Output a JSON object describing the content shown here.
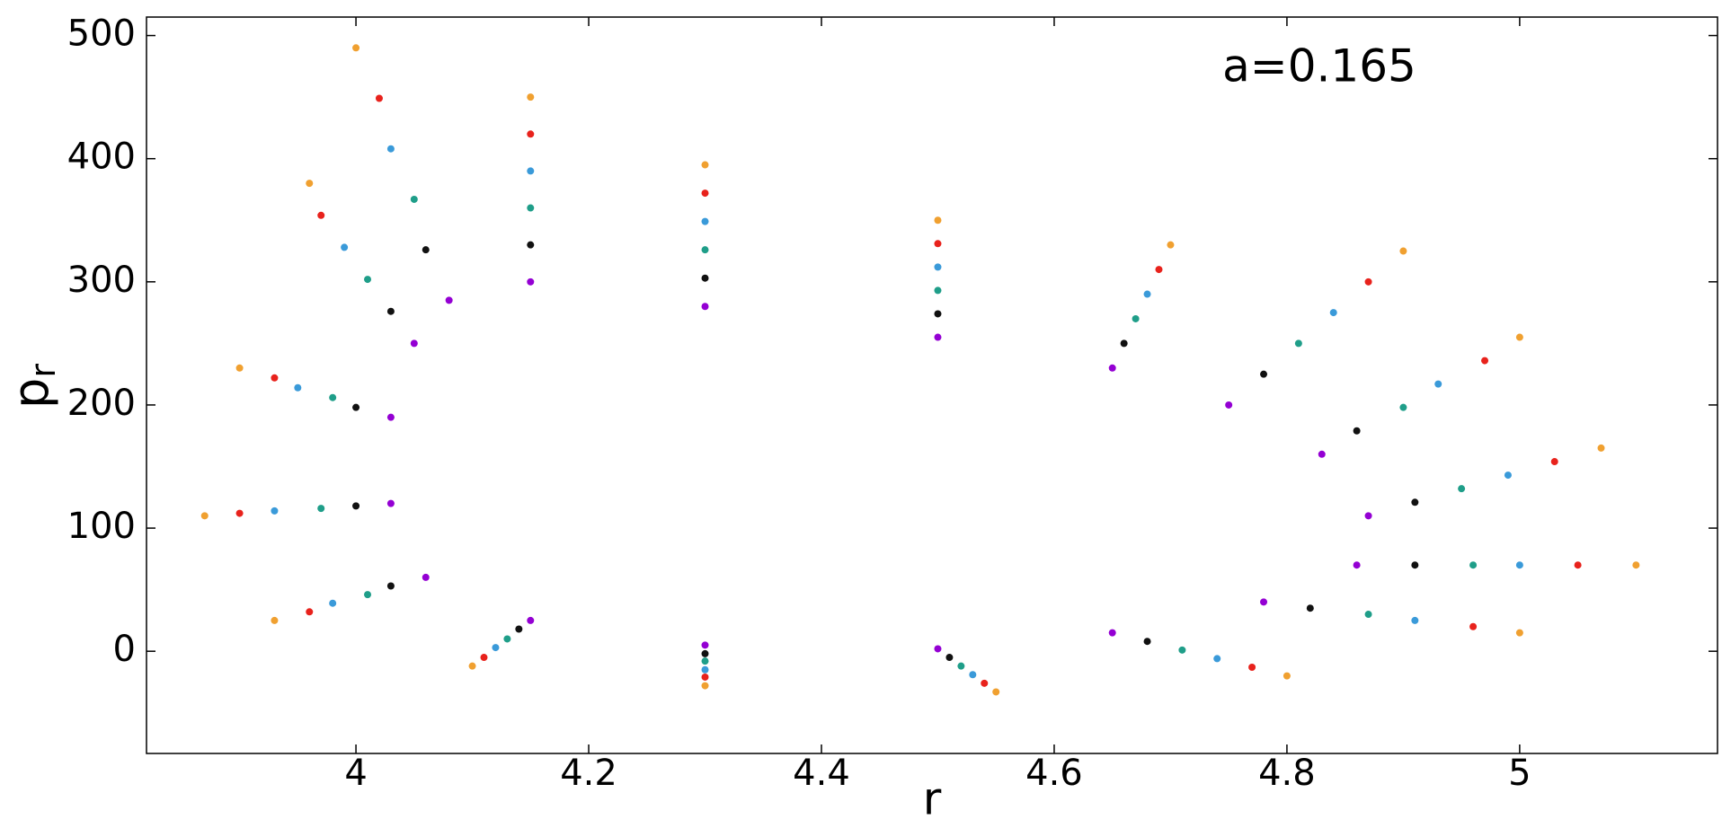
{
  "chart_data": {
    "type": "scatter",
    "annotation": "a=0.165",
    "x_label": "r",
    "y_label": "p",
    "y_label_subscript": "r",
    "xlim": [
      3.82,
      5.17
    ],
    "ylim": [
      -83,
      515
    ],
    "xticks": [
      4,
      4.2,
      4.4,
      4.6,
      4.8,
      5
    ],
    "yticks": [
      0,
      100,
      200,
      300,
      400,
      500
    ],
    "grid": false,
    "series": [
      {
        "color": "#9400d3",
        "x": [
          4.08,
          4.15,
          4.3,
          4.5,
          4.65,
          4.75,
          4.83,
          4.87,
          4.86,
          4.78,
          4.65,
          4.5,
          4.3,
          4.15,
          4.06,
          4.03,
          4.03,
          4.05
        ],
        "values": [
          285,
          300,
          280,
          255,
          230,
          200,
          160,
          110,
          70,
          40,
          15,
          2,
          5,
          25,
          60,
          120,
          190,
          250
        ]
      },
      {
        "color": "#111111",
        "x": [
          4.06,
          4.15,
          4.3,
          4.5,
          4.66,
          4.78,
          4.86,
          4.91,
          4.91,
          4.82,
          4.68,
          4.51,
          4.3,
          4.14,
          4.03,
          4.0,
          4.0,
          4.03
        ],
        "values": [
          326,
          330,
          303,
          274,
          250,
          225,
          179,
          121,
          70,
          35,
          8,
          -5,
          -2,
          18,
          53,
          118,
          198,
          276
        ]
      },
      {
        "color": "#1f9e89",
        "x": [
          4.05,
          4.15,
          4.3,
          4.5,
          4.67,
          4.81,
          4.9,
          4.95,
          4.96,
          4.87,
          4.71,
          4.52,
          4.3,
          4.13,
          4.01,
          3.97,
          3.98,
          4.01
        ],
        "values": [
          367,
          360,
          326,
          293,
          270,
          250,
          198,
          132,
          70,
          30,
          1,
          -12,
          -8,
          10,
          46,
          116,
          206,
          302
        ]
      },
      {
        "color": "#3a9ad9",
        "x": [
          4.03,
          4.15,
          4.3,
          4.5,
          4.68,
          4.84,
          4.93,
          4.99,
          5.0,
          4.91,
          4.74,
          4.53,
          4.3,
          4.12,
          3.98,
          3.93,
          3.95,
          3.99
        ],
        "values": [
          408,
          390,
          349,
          312,
          290,
          275,
          217,
          143,
          70,
          25,
          -6,
          -19,
          -15,
          3,
          39,
          114,
          214,
          328
        ]
      },
      {
        "color": "#e8221c",
        "x": [
          4.02,
          4.15,
          4.3,
          4.5,
          4.69,
          4.87,
          4.97,
          5.03,
          5.05,
          4.96,
          4.77,
          4.54,
          4.3,
          4.11,
          3.96,
          3.9,
          3.93,
          3.97
        ],
        "values": [
          449,
          420,
          372,
          331,
          310,
          300,
          236,
          154,
          70,
          20,
          -13,
          -26,
          -21,
          -5,
          32,
          112,
          222,
          354
        ]
      },
      {
        "color": "#f0a030",
        "x": [
          4.0,
          4.15,
          4.3,
          4.5,
          4.7,
          4.9,
          5.0,
          5.07,
          5.1,
          5.0,
          4.8,
          4.55,
          4.3,
          4.1,
          3.93,
          3.87,
          3.9,
          3.96
        ],
        "values": [
          490,
          450,
          395,
          350,
          330,
          325,
          255,
          165,
          70,
          15,
          -20,
          -33,
          -28,
          -12,
          25,
          110,
          230,
          380
        ]
      }
    ]
  }
}
